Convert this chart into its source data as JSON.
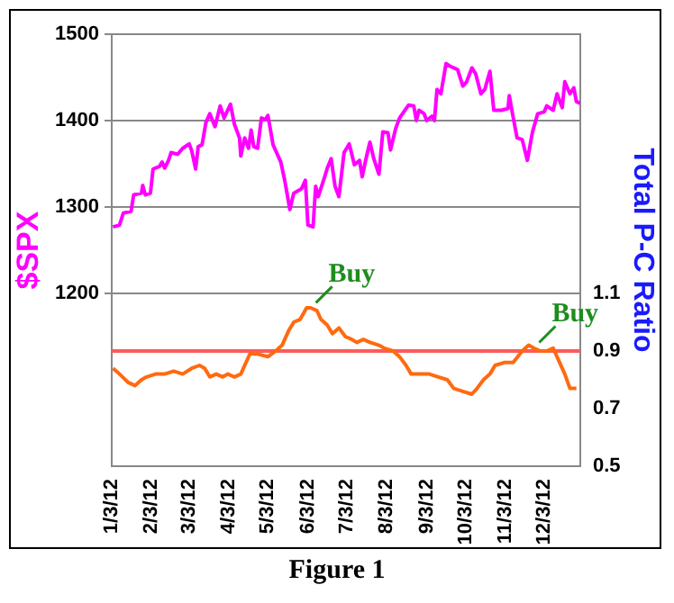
{
  "chart_data": {
    "type": "line",
    "title": "Figure 1",
    "ylabel": "$SPX",
    "y2label": "Total P-C Ratio",
    "xlim": [
      "2012-01-03",
      "2012-12-31"
    ],
    "xticks": [
      {
        "value": "2012-01-03",
        "label": "1/3/12"
      },
      {
        "value": "2012-02-03",
        "label": "2/3/12"
      },
      {
        "value": "2012-03-03",
        "label": "3/3/12"
      },
      {
        "value": "2012-04-03",
        "label": "4/3/12"
      },
      {
        "value": "2012-05-03",
        "label": "5/3/12"
      },
      {
        "value": "2012-06-03",
        "label": "6/3/12"
      },
      {
        "value": "2012-07-03",
        "label": "7/3/12"
      },
      {
        "value": "2012-08-03",
        "label": "8/3/12"
      },
      {
        "value": "2012-09-03",
        "label": "9/3/12"
      },
      {
        "value": "2012-10-03",
        "label": "10/3/12"
      },
      {
        "value": "2012-11-03",
        "label": "11/3/12"
      },
      {
        "value": "2012-12-03",
        "label": "12/3/12"
      }
    ],
    "ylim": [
      1000,
      1500
    ],
    "yticks": [
      1200,
      1300,
      1400,
      1500
    ],
    "y2lim": [
      0.5,
      2.0
    ],
    "y2ticks": [
      0.5,
      0.7,
      0.9,
      1.1
    ],
    "grid": "y",
    "legend": false,
    "marker": "none",
    "line_style": "solid",
    "ref_lines": [
      {
        "axis": "y2",
        "value": 0.9,
        "color": "#ff5a5a"
      }
    ],
    "annotations": [
      {
        "text": "Buy",
        "x": "2012-06-05",
        "y": 1183
      },
      {
        "text": "Buy",
        "x": "2012-11-25",
        "y": 1137
      }
    ],
    "series": [
      {
        "color": "#ff00ff",
        "x": [
          "2012-01-04",
          "2012-01-09",
          "2012-01-12",
          "2012-01-18",
          "2012-01-20",
          "2012-01-26",
          "2012-01-27",
          "2012-01-29",
          "2012-02-02",
          "2012-02-04",
          "2012-02-09",
          "2012-02-11",
          "2012-02-13",
          "2012-02-16",
          "2012-02-18",
          "2012-02-23",
          "2012-02-27",
          "2012-03-03",
          "2012-03-05",
          "2012-03-08",
          "2012-03-10",
          "2012-03-13",
          "2012-03-16",
          "2012-03-19",
          "2012-03-23",
          "2012-03-27",
          "2012-03-30",
          "2012-04-04",
          "2012-04-07",
          "2012-04-11",
          "2012-04-12",
          "2012-04-15",
          "2012-04-18",
          "2012-04-20",
          "2012-04-22",
          "2012-04-25",
          "2012-04-28",
          "2012-05-01",
          "2012-05-03",
          "2012-05-07",
          "2012-05-13",
          "2012-05-16",
          "2012-05-20",
          "2012-05-23",
          "2012-05-29",
          "2012-06-01",
          "2012-06-03",
          "2012-06-07",
          "2012-06-09",
          "2012-06-11",
          "2012-06-16",
          "2012-06-18",
          "2012-06-21",
          "2012-06-24",
          "2012-06-27",
          "2012-07-01",
          "2012-07-05",
          "2012-07-09",
          "2012-07-13",
          "2012-07-15",
          "2012-07-18",
          "2012-07-21",
          "2012-07-24",
          "2012-07-28",
          "2012-07-31",
          "2012-08-04",
          "2012-08-06",
          "2012-08-10",
          "2012-08-13",
          "2012-08-20",
          "2012-08-24",
          "2012-08-26",
          "2012-08-28",
          "2012-09-01",
          "2012-09-03",
          "2012-09-07",
          "2012-09-09",
          "2012-09-11",
          "2012-09-14",
          "2012-09-18",
          "2012-09-21",
          "2012-09-27",
          "2012-10-01",
          "2012-10-04",
          "2012-10-08",
          "2012-10-11",
          "2012-10-15",
          "2012-10-18",
          "2012-10-22",
          "2012-10-25",
          "2012-10-31",
          "2012-11-05",
          "2012-11-06",
          "2012-11-08",
          "2012-11-12",
          "2012-11-16",
          "2012-11-20",
          "2012-11-24",
          "2012-11-28",
          "2012-12-03",
          "2012-12-05",
          "2012-12-10",
          "2012-12-13",
          "2012-12-17",
          "2012-12-19",
          "2012-12-23",
          "2012-12-26",
          "2012-12-28",
          "2012-12-31"
        ],
        "values": [
          1277,
          1279,
          1293,
          1295,
          1314,
          1316,
          1325,
          1314,
          1316,
          1344,
          1347,
          1352,
          1345,
          1354,
          1363,
          1361,
          1368,
          1373,
          1365,
          1344,
          1370,
          1372,
          1398,
          1408,
          1393,
          1417,
          1403,
          1419,
          1396,
          1380,
          1359,
          1380,
          1368,
          1389,
          1370,
          1368,
          1403,
          1401,
          1406,
          1372,
          1352,
          1331,
          1297,
          1316,
          1321,
          1331,
          1279,
          1277,
          1324,
          1312,
          1335,
          1345,
          1356,
          1324,
          1312,
          1363,
          1373,
          1349,
          1354,
          1335,
          1356,
          1375,
          1356,
          1338,
          1387,
          1386,
          1366,
          1391,
          1403,
          1418,
          1417,
          1400,
          1412,
          1408,
          1400,
          1405,
          1400,
          1436,
          1431,
          1466,
          1463,
          1459,
          1440,
          1445,
          1461,
          1454,
          1431,
          1436,
          1457,
          1412,
          1412,
          1414,
          1429,
          1412,
          1380,
          1378,
          1354,
          1387,
          1408,
          1410,
          1417,
          1412,
          1431,
          1415,
          1445,
          1431,
          1438,
          1422,
          1420
        ]
      },
      {
        "color": "#ff6a10",
        "axis": "y2",
        "x": [
          "2012-01-04",
          "2012-01-09",
          "2012-01-16",
          "2012-01-21",
          "2012-01-26",
          "2012-01-30",
          "2012-02-06",
          "2012-02-13",
          "2012-02-20",
          "2012-02-27",
          "2012-03-05",
          "2012-03-11",
          "2012-03-15",
          "2012-03-19",
          "2012-03-24",
          "2012-03-29",
          "2012-04-02",
          "2012-04-07",
          "2012-04-12",
          "2012-04-19",
          "2012-04-25",
          "2012-05-03",
          "2012-05-09",
          "2012-05-14",
          "2012-05-19",
          "2012-05-23",
          "2012-05-28",
          "2012-06-02",
          "2012-06-05",
          "2012-06-10",
          "2012-06-13",
          "2012-06-18",
          "2012-06-22",
          "2012-06-27",
          "2012-07-02",
          "2012-07-07",
          "2012-07-11",
          "2012-07-16",
          "2012-07-21",
          "2012-07-28",
          "2012-08-01",
          "2012-08-08",
          "2012-08-13",
          "2012-08-18",
          "2012-08-22",
          "2012-08-29",
          "2012-09-05",
          "2012-09-12",
          "2012-09-19",
          "2012-09-24",
          "2012-10-01",
          "2012-10-08",
          "2012-10-12",
          "2012-10-17",
          "2012-10-22",
          "2012-10-26",
          "2012-11-02",
          "2012-11-09",
          "2012-11-16",
          "2012-11-21",
          "2012-11-25",
          "2012-11-30",
          "2012-12-05",
          "2012-12-10",
          "2012-12-14",
          "2012-12-19",
          "2012-12-23",
          "2012-12-28"
        ],
        "values": [
          0.84,
          0.82,
          0.79,
          0.78,
          0.8,
          0.81,
          0.82,
          0.82,
          0.83,
          0.82,
          0.84,
          0.85,
          0.84,
          0.81,
          0.82,
          0.81,
          0.82,
          0.81,
          0.82,
          0.89,
          0.89,
          0.88,
          0.9,
          0.92,
          0.97,
          1.0,
          1.01,
          1.05,
          1.05,
          1.04,
          1.01,
          0.99,
          0.96,
          0.98,
          0.95,
          0.94,
          0.93,
          0.94,
          0.93,
          0.92,
          0.91,
          0.9,
          0.88,
          0.85,
          0.82,
          0.82,
          0.82,
          0.81,
          0.8,
          0.77,
          0.76,
          0.75,
          0.77,
          0.8,
          0.82,
          0.85,
          0.86,
          0.86,
          0.9,
          0.92,
          0.91,
          0.9,
          0.9,
          0.91,
          0.87,
          0.82,
          0.77,
          0.77
        ]
      }
    ]
  }
}
